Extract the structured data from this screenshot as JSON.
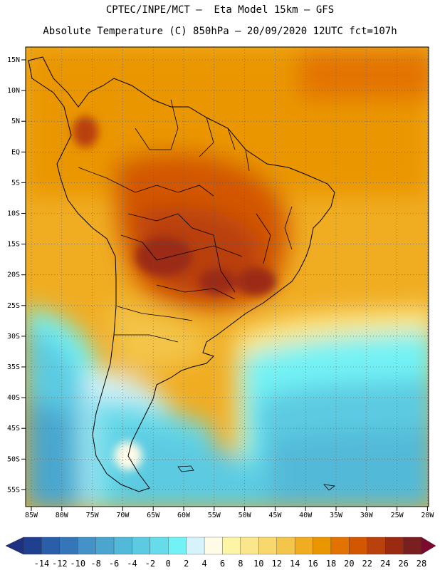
{
  "header": {
    "line1": "CPTEC/INPE/MCT –  Eta Model 15km – GFS",
    "line2": "Absolute Temperature (C) 850hPa – 20/09/2020 12UTC fct=107h"
  },
  "map": {
    "lat_labels": [
      "15N",
      "10N",
      "5N",
      "EQ",
      "5S",
      "10S",
      "15S",
      "20S",
      "25S",
      "30S",
      "35S",
      "40S",
      "45S",
      "50S",
      "55S"
    ],
    "lon_labels": [
      "85W",
      "80W",
      "75W",
      "70W",
      "65W",
      "60W",
      "55W",
      "50W",
      "45W",
      "40W",
      "35W",
      "30W",
      "25W",
      "20W"
    ]
  },
  "colorbar": {
    "labels": [
      "-14",
      "-12",
      "-10",
      "-8",
      "-6",
      "-4",
      "-2",
      "0",
      "2",
      "4",
      "6",
      "8",
      "10",
      "12",
      "14",
      "16",
      "18",
      "20",
      "22",
      "24",
      "26",
      "28"
    ],
    "colors": [
      "#1f3f8f",
      "#2a5ea8",
      "#3576b8",
      "#4592c6",
      "#4aa6cf",
      "#52b9d8",
      "#5ccbe2",
      "#66dbe9",
      "#72f2f5",
      "#d6f3fb",
      "#fffbe6",
      "#fdf5a6",
      "#fbe78b",
      "#f8d86d",
      "#f3c54a",
      "#f0ad22",
      "#ea9600",
      "#e37300",
      "#d35600",
      "#b9410c",
      "#9b2a12",
      "#7a1f1f"
    ],
    "low_arrow_color": "#1d3180",
    "high_arrow_color": "#7d0a2e"
  }
}
